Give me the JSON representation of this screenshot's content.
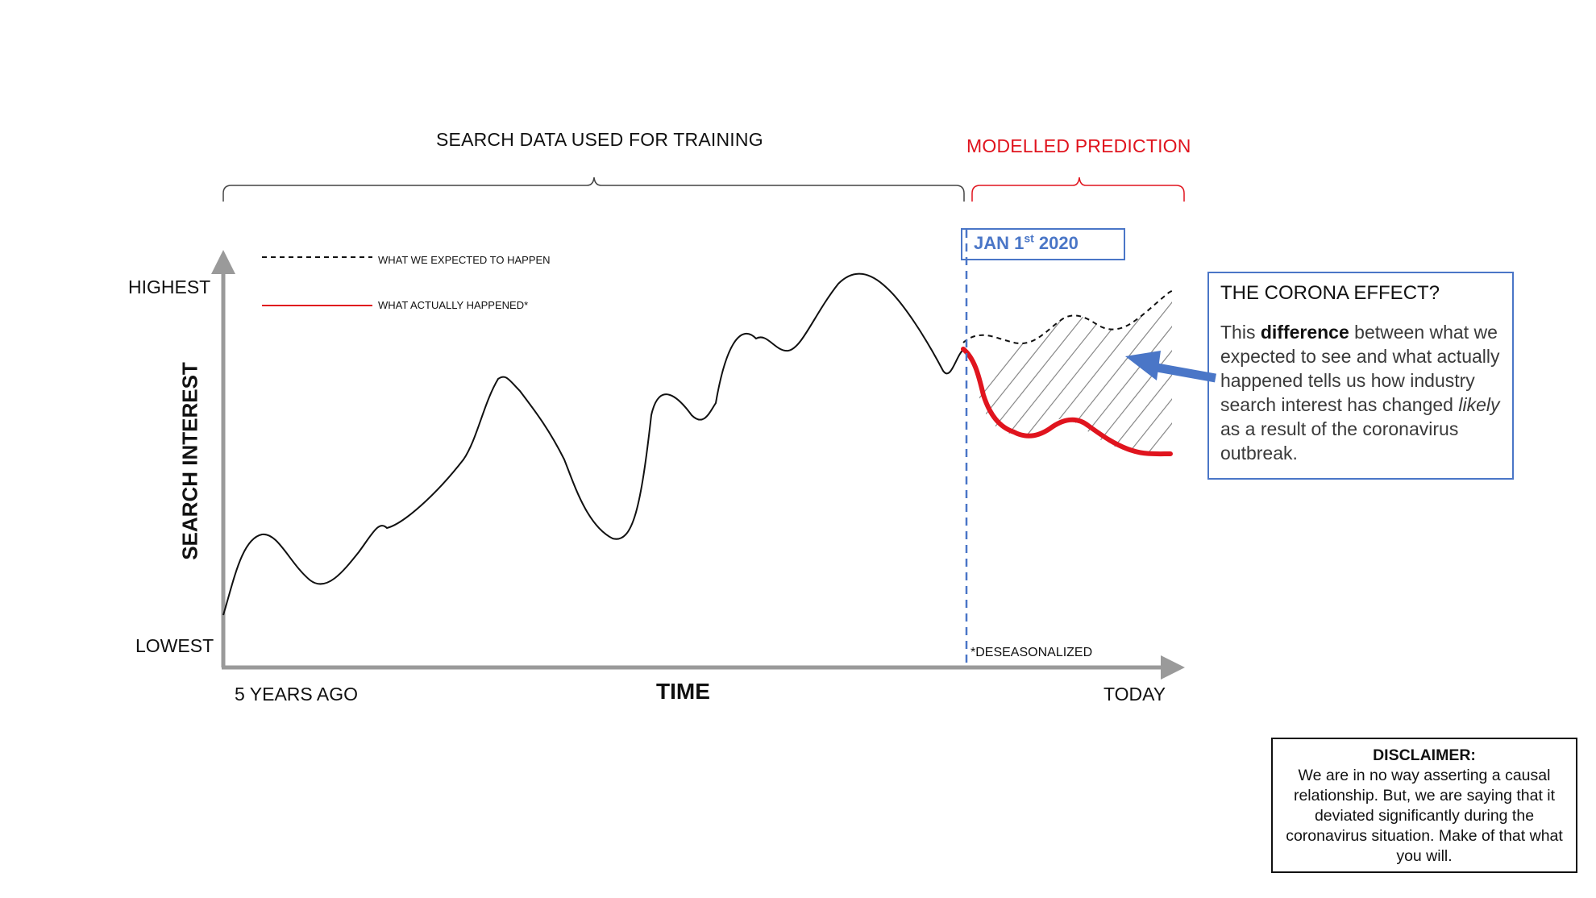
{
  "sections": {
    "training_label": "SEARCH DATA USED FOR TRAINING",
    "prediction_label": "MODELLED PREDICTION"
  },
  "axes": {
    "y_title": "SEARCH INTEREST",
    "y_high": "HIGHEST",
    "y_low": "LOWEST",
    "x_title": "TIME",
    "x_start": "5 YEARS AGO",
    "x_end": "TODAY"
  },
  "legend": {
    "expected": "WHAT WE EXPECTED TO HAPPEN",
    "actual": "WHAT ACTUALLY HAPPENED*"
  },
  "marker": {
    "date_prefix": "JAN 1",
    "date_suffix": "st",
    "date_year": " 2020"
  },
  "footnote": "*DESEASONALIZED",
  "callout": {
    "title": "THE CORONA EFFECT?",
    "p1": "This ",
    "p2": "difference",
    "p3": " between what we expected to see and what actually happened tells us how industry search interest has changed ",
    "p4": "likely",
    "p5": " as a result of the coronavirus outbreak."
  },
  "disclaimer": {
    "title": "DISCLAIMER:",
    "body": "We are in no way asserting a causal relationship. But, we are saying that it deviated significantly during the coronavirus situation. Make of that what you will."
  },
  "colors": {
    "actual": "#e0141e",
    "marker": "#4a76c7",
    "axis": "#9a9a9a",
    "expected": "#111111"
  }
}
